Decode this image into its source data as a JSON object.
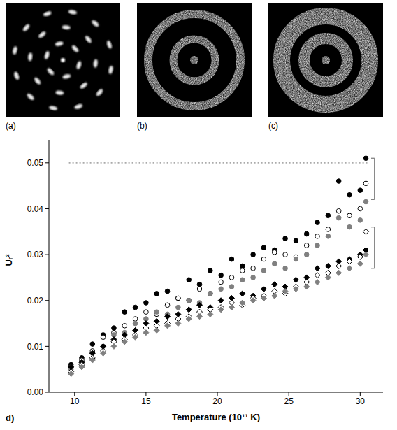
{
  "panels": [
    {
      "label": "(a)"
    },
    {
      "label": "(b)"
    },
    {
      "label": "(c)"
    }
  ],
  "chart_data": {
    "type": "scatter",
    "panel_label": "d)",
    "x_label": "Temperature (10¹¹ K)",
    "y_label": "Uᵣ²",
    "xlim": [
      8.2,
      31.6
    ],
    "xticks": [
      10,
      15,
      20,
      25,
      30
    ],
    "ylim": [
      0,
      0.055
    ],
    "yticks": [
      {
        "value": 0,
        "label": "0.00"
      },
      {
        "value": 0.01,
        "label": "0.01"
      },
      {
        "value": 0.02,
        "label": "0.02"
      },
      {
        "value": 0.03,
        "label": "0.03"
      },
      {
        "value": 0.04,
        "label": "0.04"
      },
      {
        "value": 0.05,
        "label": "0.05"
      }
    ],
    "grid": false,
    "x": [
      9.75,
      10.5,
      11.25,
      12,
      12.75,
      13.5,
      14.25,
      15,
      15.75,
      16.5,
      17.25,
      18,
      18.75,
      19.5,
      20.25,
      21,
      21.75,
      22.5,
      23.25,
      24,
      24.75,
      25.5,
      26.25,
      27,
      27.75,
      28.5,
      29.25,
      30,
      30.4
    ],
    "series": [
      {
        "color": "#000000",
        "marker": "circle",
        "values": [
          0.006,
          0.0075,
          0.0105,
          0.0125,
          0.014,
          0.0175,
          0.0185,
          0.0195,
          0.0215,
          0.022,
          0.0205,
          0.0245,
          0.0235,
          0.0265,
          0.0255,
          0.029,
          0.0275,
          0.03,
          0.0315,
          0.031,
          0.0335,
          0.033,
          0.0345,
          0.037,
          0.0385,
          0.046,
          0.043,
          0.044,
          0.051
        ]
      },
      {
        "color": "#000000",
        "marker": "open_circle",
        "values": [
          0.0055,
          0.007,
          0.009,
          0.012,
          0.013,
          0.0145,
          0.016,
          0.0175,
          0.017,
          0.019,
          0.0205,
          0.02,
          0.0225,
          0.0215,
          0.024,
          0.025,
          0.0265,
          0.027,
          0.029,
          0.0305,
          0.03,
          0.0295,
          0.032,
          0.034,
          0.0355,
          0.0395,
          0.0385,
          0.04,
          0.0455
        ]
      },
      {
        "color": "#808080",
        "marker": "circle",
        "values": [
          0.005,
          0.0065,
          0.0085,
          0.01,
          0.0125,
          0.013,
          0.015,
          0.016,
          0.0175,
          0.017,
          0.0185,
          0.02,
          0.0195,
          0.0215,
          0.0225,
          0.023,
          0.0245,
          0.025,
          0.0265,
          0.028,
          0.027,
          0.029,
          0.03,
          0.032,
          0.034,
          0.038,
          0.036,
          0.0375,
          0.0415
        ]
      },
      {
        "color": "#000000",
        "marker": "diamond",
        "values": [
          0.0055,
          0.0065,
          0.0085,
          0.01,
          0.0115,
          0.0125,
          0.0135,
          0.015,
          0.0155,
          0.0165,
          0.017,
          0.018,
          0.019,
          0.0185,
          0.02,
          0.0205,
          0.0215,
          0.021,
          0.0225,
          0.0235,
          0.023,
          0.0245,
          0.025,
          0.027,
          0.0275,
          0.0285,
          0.029,
          0.03,
          0.031
        ]
      },
      {
        "color": "#000000",
        "marker": "open_diamond",
        "values": [
          0.0045,
          0.006,
          0.0075,
          0.009,
          0.011,
          0.0115,
          0.0125,
          0.014,
          0.0145,
          0.015,
          0.016,
          0.0165,
          0.0175,
          0.018,
          0.0185,
          0.0195,
          0.019,
          0.0205,
          0.021,
          0.022,
          0.0215,
          0.023,
          0.024,
          0.0255,
          0.026,
          0.0275,
          0.0285,
          0.0295,
          0.035
        ]
      },
      {
        "color": "#808080",
        "marker": "diamond",
        "values": [
          0.004,
          0.0055,
          0.007,
          0.0085,
          0.01,
          0.011,
          0.012,
          0.013,
          0.0135,
          0.0145,
          0.015,
          0.016,
          0.0165,
          0.017,
          0.018,
          0.0185,
          0.0195,
          0.02,
          0.0205,
          0.021,
          0.022,
          0.0225,
          0.023,
          0.024,
          0.025,
          0.026,
          0.027,
          0.028,
          0.03
        ]
      }
    ],
    "reference_line": {
      "y": 0.05,
      "x": [
        9.6,
        30.5
      ],
      "color": "#aaaaaa",
      "line_style": "dotted"
    },
    "brackets": [
      {
        "x": 31.0,
        "y": [
          0.042,
          0.051
        ]
      },
      {
        "x": 31.0,
        "y": [
          0.027,
          0.036
        ]
      }
    ]
  }
}
